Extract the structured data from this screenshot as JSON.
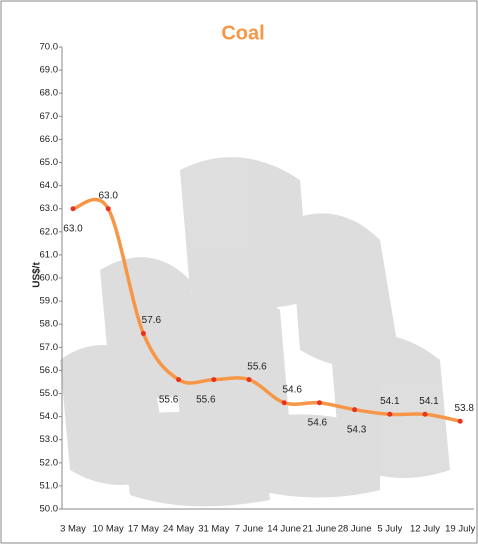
{
  "chart_data": {
    "type": "line",
    "title": "Coal",
    "y_label": "US$/t",
    "categories": [
      "3 May",
      "10 May",
      "17 May",
      "24 May",
      "31 May",
      "7 June",
      "14 June",
      "21 June",
      "28 June",
      "5 July",
      "12 July",
      "19 July"
    ],
    "series": [
      {
        "name": "Coal",
        "color": "#f79646",
        "marker_color": "#e8311f",
        "values": [
          63.0,
          63.0,
          57.6,
          55.6,
          55.6,
          55.6,
          54.6,
          54.6,
          54.3,
          54.1,
          54.1,
          53.8
        ],
        "value_labels": [
          "63.0",
          "63.0",
          "57.6",
          "55.6",
          "55.6",
          "55.6",
          "54.6",
          "54.6",
          "54.3",
          "54.1",
          "54.1",
          "53.8"
        ]
      }
    ],
    "ylim": [
      50,
      70
    ],
    "yticks": [
      {
        "value": 50,
        "label": "50.0"
      },
      {
        "value": 51,
        "label": "51.0"
      },
      {
        "value": 52,
        "label": "52.0"
      },
      {
        "value": 53,
        "label": "53.0"
      },
      {
        "value": 54,
        "label": "54.0"
      },
      {
        "value": 55,
        "label": "55.0"
      },
      {
        "value": 56,
        "label": "56.0"
      },
      {
        "value": 57,
        "label": "57.0"
      },
      {
        "value": 58,
        "label": "58.0"
      },
      {
        "value": 59,
        "label": "59.0"
      },
      {
        "value": 60,
        "label": "60.0"
      },
      {
        "value": 61,
        "label": "61.0"
      },
      {
        "value": 62,
        "label": "62.0"
      },
      {
        "value": 63,
        "label": "63.0"
      },
      {
        "value": 64,
        "label": "64.0"
      },
      {
        "value": 65,
        "label": "65.0"
      },
      {
        "value": 66,
        "label": "66.0"
      },
      {
        "value": 67,
        "label": "67.0"
      },
      {
        "value": 68,
        "label": "68.0"
      },
      {
        "value": 69,
        "label": "69.0"
      },
      {
        "value": 70,
        "label": "70.0"
      }
    ],
    "smooth": true
  }
}
